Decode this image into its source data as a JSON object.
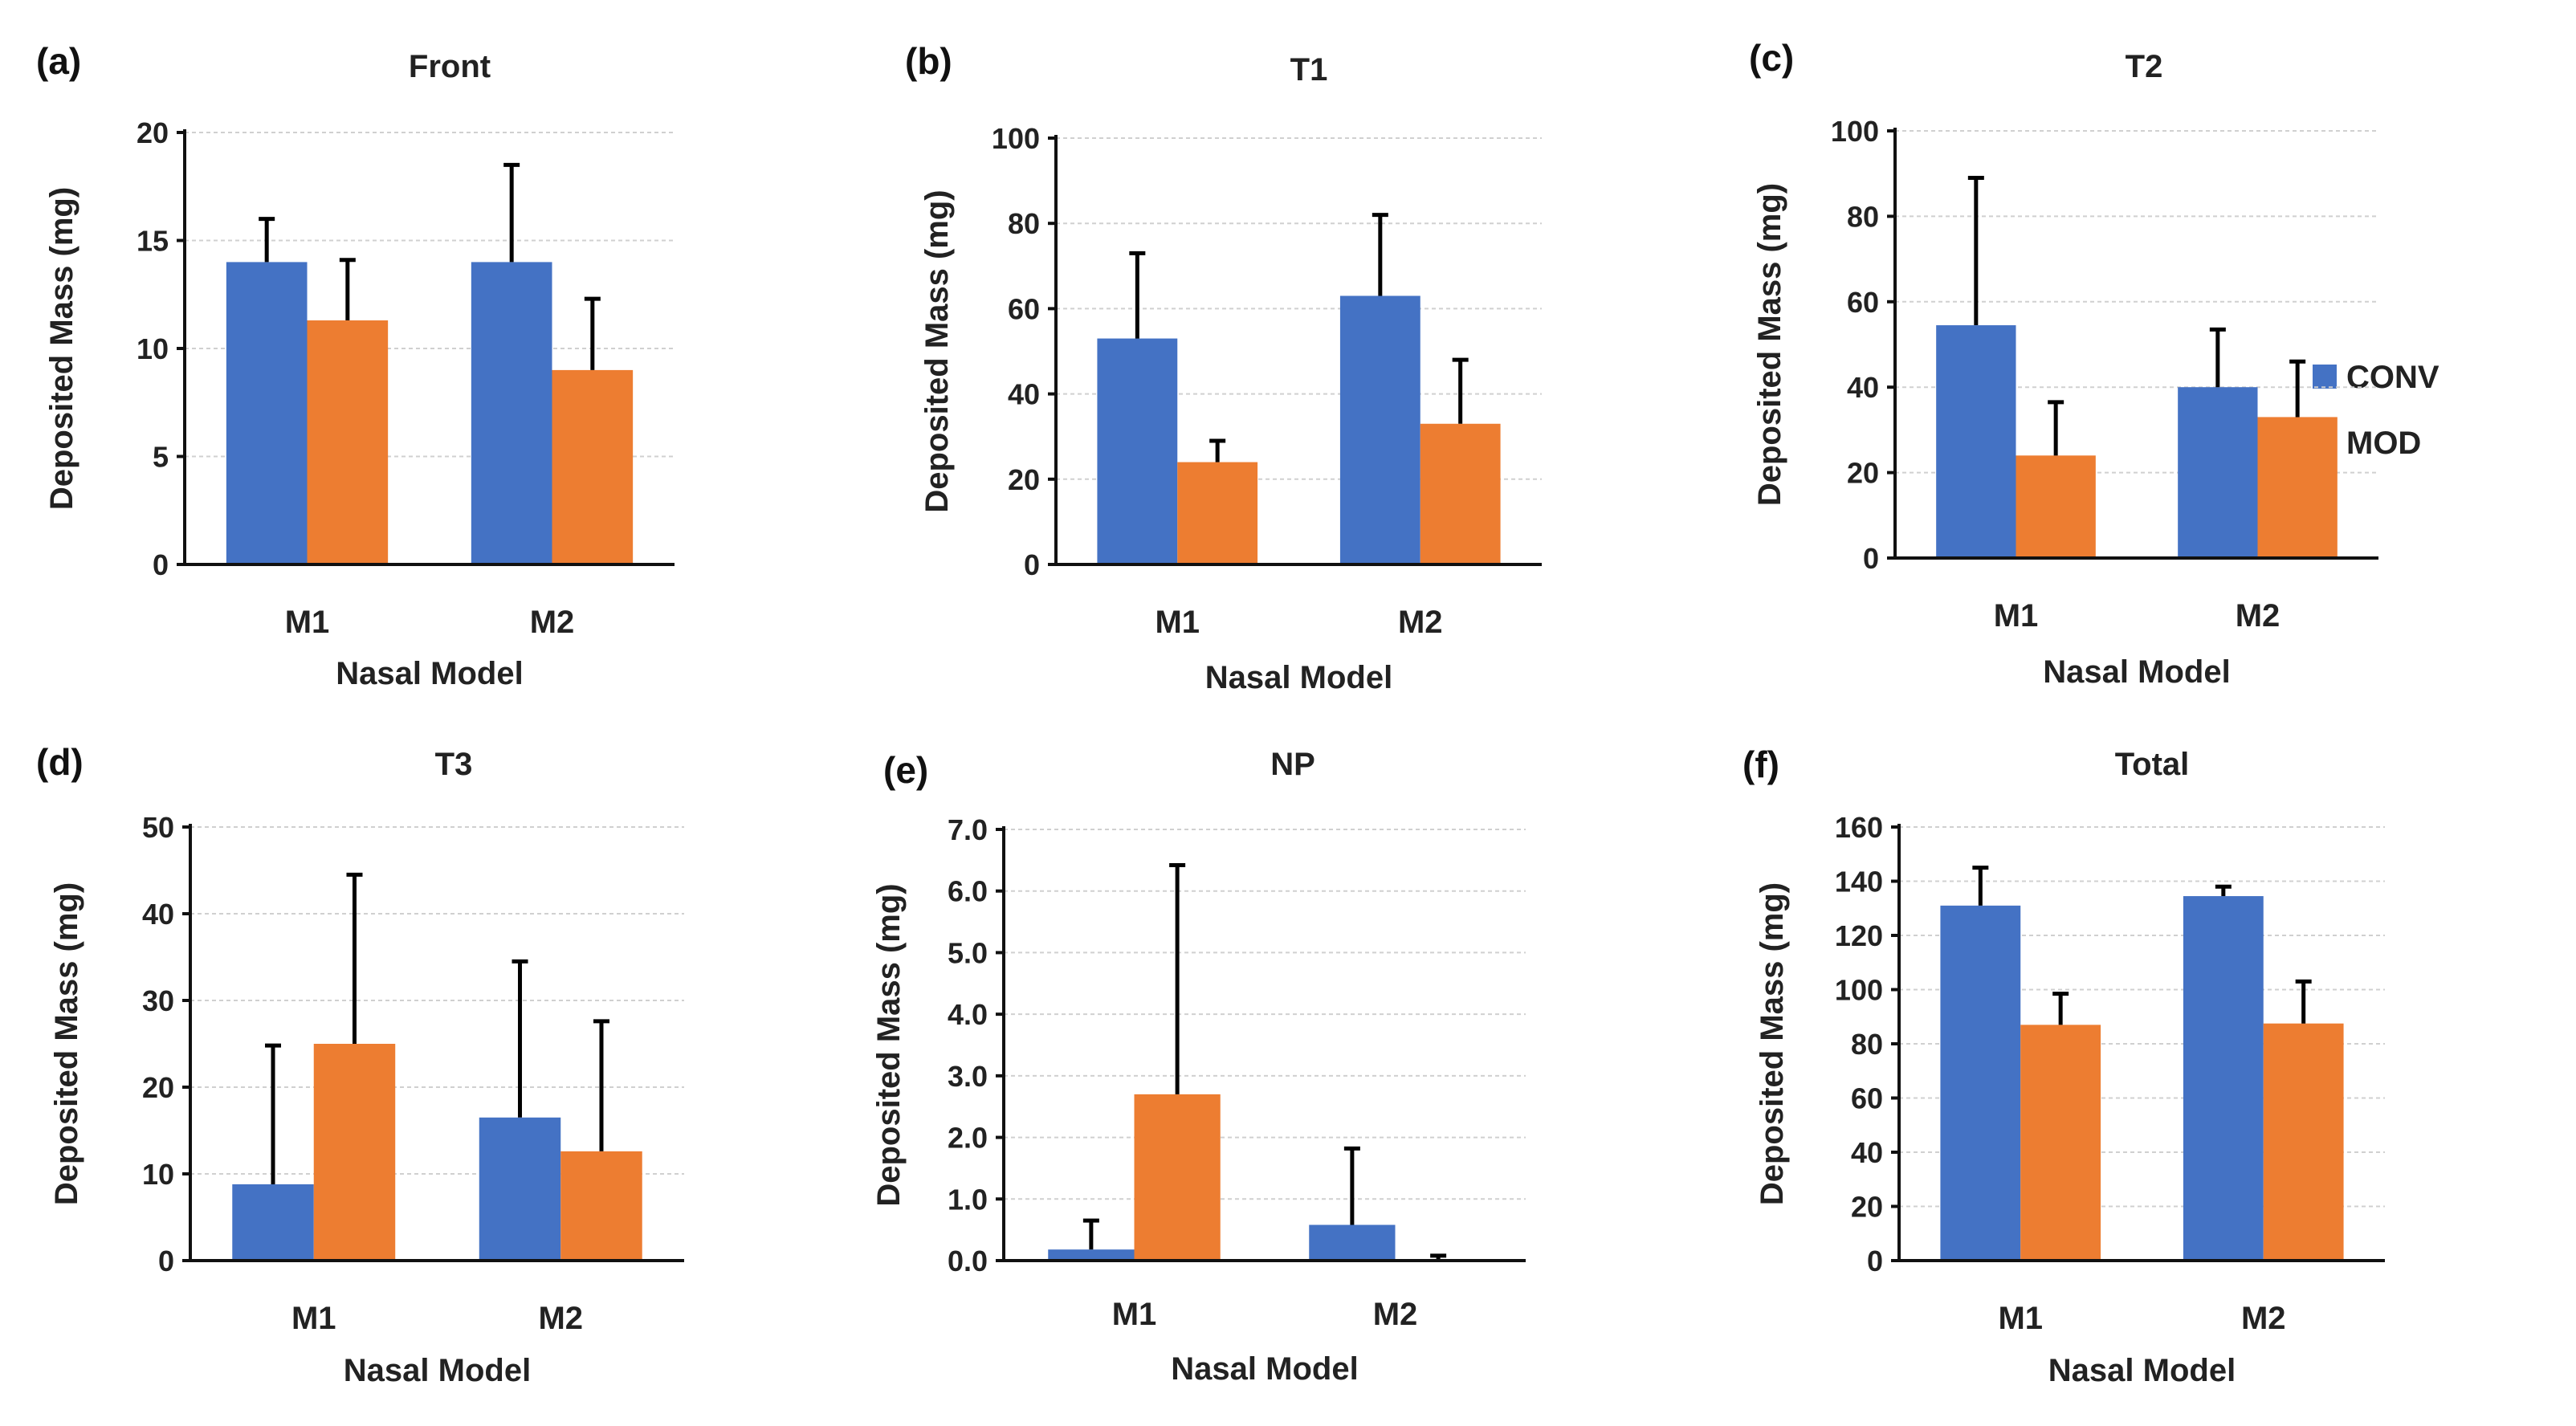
{
  "figure": {
    "legend": [
      {
        "name": "CONV",
        "color": "#4472C4"
      },
      {
        "name": "MOD",
        "color": "#ED7D31"
      }
    ]
  },
  "chart_data": [
    {
      "panel": "(a)",
      "type": "bar",
      "title": "Front",
      "xlabel": "Nasal Model",
      "ylabel": "Deposited Mass (mg)",
      "categories": [
        "M1",
        "M2"
      ],
      "ylim": [
        0,
        20
      ],
      "yticks": [
        "0",
        "5",
        "10",
        "15",
        "20"
      ],
      "grid": true,
      "series": [
        {
          "name": "CONV",
          "color": "#4472C4",
          "values": [
            14.0,
            14.0
          ],
          "errors": [
            2.0,
            4.5
          ]
        },
        {
          "name": "MOD",
          "color": "#ED7D31",
          "values": [
            11.3,
            9.0
          ],
          "errors": [
            2.8,
            3.3
          ]
        }
      ]
    },
    {
      "panel": "(b)",
      "type": "bar",
      "title": "T1",
      "xlabel": "Nasal Model",
      "ylabel": "Deposited Mass (mg)",
      "categories": [
        "M1",
        "M2"
      ],
      "ylim": [
        0,
        100
      ],
      "yticks": [
        "0",
        "20",
        "40",
        "60",
        "80",
        "100"
      ],
      "grid": true,
      "series": [
        {
          "name": "CONV",
          "color": "#4472C4",
          "values": [
            53.0,
            63.0
          ],
          "errors": [
            20.0,
            19.0
          ]
        },
        {
          "name": "MOD",
          "color": "#ED7D31",
          "values": [
            24.0,
            33.0
          ],
          "errors": [
            5.0,
            15.0
          ]
        }
      ]
    },
    {
      "panel": "(c)",
      "type": "bar",
      "title": "T2",
      "xlabel": "Nasal Model",
      "ylabel": "Deposited Mass (mg)",
      "categories": [
        "M1",
        "M2"
      ],
      "ylim": [
        0,
        100
      ],
      "yticks": [
        "0",
        "20",
        "40",
        "60",
        "80",
        "100"
      ],
      "grid": true,
      "series": [
        {
          "name": "CONV",
          "color": "#4472C4",
          "values": [
            54.5,
            40.0
          ],
          "errors": [
            34.5,
            13.5
          ]
        },
        {
          "name": "MOD",
          "color": "#ED7D31",
          "values": [
            24.0,
            33.0
          ],
          "errors": [
            12.5,
            13.0
          ]
        }
      ]
    },
    {
      "panel": "(d)",
      "type": "bar",
      "title": "T3",
      "xlabel": "Nasal Model",
      "ylabel": "Deposited Mass (mg)",
      "categories": [
        "M1",
        "M2"
      ],
      "ylim": [
        0,
        50
      ],
      "yticks": [
        "0",
        "10",
        "20",
        "30",
        "40",
        "50"
      ],
      "grid": true,
      "series": [
        {
          "name": "CONV",
          "color": "#4472C4",
          "values": [
            8.8,
            16.5
          ],
          "errors": [
            16.0,
            18.0
          ]
        },
        {
          "name": "MOD",
          "color": "#ED7D31",
          "values": [
            25.0,
            12.6
          ],
          "errors": [
            19.5,
            15.0
          ]
        }
      ]
    },
    {
      "panel": "(e)",
      "type": "bar",
      "title": "NP",
      "xlabel": "Nasal Model",
      "ylabel": "Deposited Mass (mg)",
      "categories": [
        "M1",
        "M2"
      ],
      "ylim": [
        0,
        7
      ],
      "yticks": [
        "0.0",
        "1.0",
        "2.0",
        "3.0",
        "4.0",
        "5.0",
        "6.0",
        "7.0"
      ],
      "grid": true,
      "series": [
        {
          "name": "CONV",
          "color": "#4472C4",
          "values": [
            0.18,
            0.58
          ],
          "errors": [
            0.47,
            1.24
          ]
        },
        {
          "name": "MOD",
          "color": "#ED7D31",
          "values": [
            2.7,
            0.02
          ],
          "errors": [
            3.72,
            0.06
          ]
        }
      ]
    },
    {
      "panel": "(f)",
      "type": "bar",
      "title": "Total",
      "xlabel": "Nasal Model",
      "ylabel": "Deposited Mass (mg)",
      "categories": [
        "M1",
        "M2"
      ],
      "ylim": [
        0,
        160
      ],
      "yticks": [
        "0",
        "20",
        "40",
        "60",
        "80",
        "100",
        "120",
        "140",
        "160"
      ],
      "grid": true,
      "series": [
        {
          "name": "CONV",
          "color": "#4472C4",
          "values": [
            131.0,
            134.5
          ],
          "errors": [
            14.0,
            3.5
          ]
        },
        {
          "name": "MOD",
          "color": "#ED7D31",
          "values": [
            87.0,
            87.5
          ],
          "errors": [
            11.5,
            15.5
          ]
        }
      ]
    }
  ]
}
